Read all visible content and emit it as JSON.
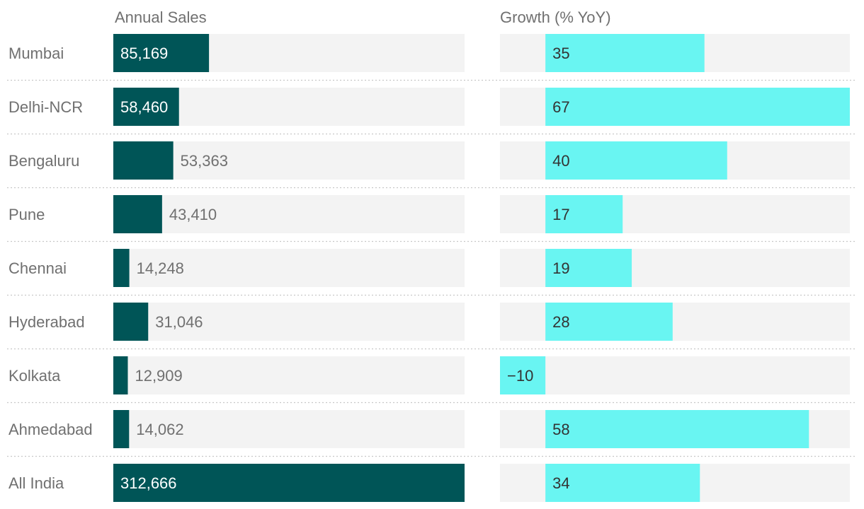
{
  "chart_data": {
    "type": "bar",
    "layout": "dual-panel horizontal bar table",
    "headers": {
      "sales": "Annual Sales",
      "growth": "Growth (% YoY)"
    },
    "rows": [
      {
        "label": "Mumbai",
        "sales": 85169,
        "sales_label": "85,169",
        "growth": 35,
        "growth_label": "35"
      },
      {
        "label": "Delhi-NCR",
        "sales": 58460,
        "sales_label": "58,460",
        "growth": 67,
        "growth_label": "67"
      },
      {
        "label": "Bengaluru",
        "sales": 53363,
        "sales_label": "53,363",
        "growth": 40,
        "growth_label": "40"
      },
      {
        "label": "Pune",
        "sales": 43410,
        "sales_label": "43,410",
        "growth": 17,
        "growth_label": "17"
      },
      {
        "label": "Chennai",
        "sales": 14248,
        "sales_label": "14,248",
        "growth": 19,
        "growth_label": "19"
      },
      {
        "label": "Hyderabad",
        "sales": 31046,
        "sales_label": "31,046",
        "growth": 28,
        "growth_label": "28"
      },
      {
        "label": "Kolkata",
        "sales": 12909,
        "sales_label": "12,909",
        "growth": -10,
        "growth_label": "−10"
      },
      {
        "label": "Ahmedabad",
        "sales": 14062,
        "sales_label": "14,062",
        "growth": 58,
        "growth_label": "58"
      },
      {
        "label": "All India",
        "sales": 312666,
        "sales_label": "312,666",
        "growth": 34,
        "growth_label": "34"
      }
    ],
    "sales_range": [
      0,
      312666
    ],
    "growth_range": [
      -10,
      67
    ],
    "colors": {
      "sales_bar": "#005557",
      "growth_bar": "#69f5f2",
      "track": "#f3f3f3",
      "label_text": "#707070",
      "inside_text_light": "#ffffff",
      "inside_text_dark": "#333333",
      "separator": "#c8c8c8"
    }
  }
}
